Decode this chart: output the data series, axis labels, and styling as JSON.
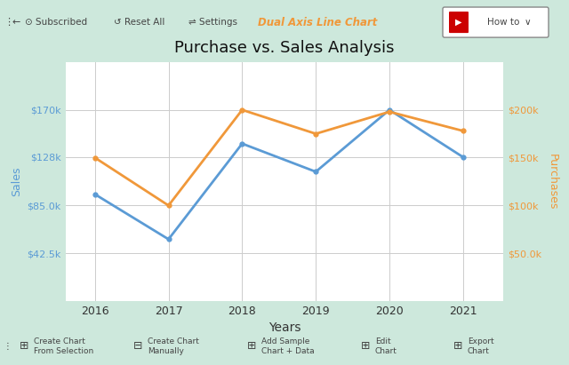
{
  "title": "Purchase vs. Sales Analysis",
  "xlabel": "Years",
  "ylabel_left": "Sales",
  "ylabel_right": "Purchases",
  "years": [
    2016,
    2017,
    2018,
    2019,
    2020,
    2021
  ],
  "sales": [
    95000,
    55000,
    140000,
    115000,
    170000,
    128000
  ],
  "purchases": [
    150000,
    100000,
    200000,
    175000,
    198000,
    178000
  ],
  "sales_color": "#5b9bd5",
  "purchases_color": "#f0983a",
  "left_ylim": [
    0,
    212500
  ],
  "right_ylim": [
    0,
    250000
  ],
  "left_yticks": [
    42500,
    85000,
    128000,
    170000
  ],
  "right_yticks": [
    50000,
    100000,
    150000,
    200000
  ],
  "left_ytick_labels": [
    "$42.5k",
    "$85.0k",
    "$128k",
    "$170k"
  ],
  "right_ytick_labels": [
    "$50.0k",
    "$100k",
    "$150k",
    "$200k"
  ],
  "bg_color": "#cde8dc",
  "plot_bg": "#ffffff",
  "grid_color": "#cccccc",
  "line_width": 2.0,
  "toolbar_text_color": "#444444",
  "title_color": "#111111"
}
